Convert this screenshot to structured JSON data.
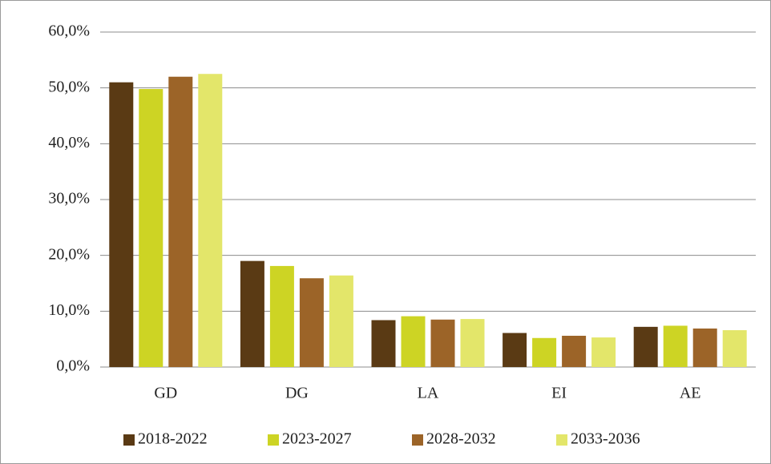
{
  "chart_data": {
    "type": "bar",
    "categories": [
      "GD",
      "DG",
      "LA",
      "EI",
      "AE"
    ],
    "series": [
      {
        "name": "2018-2022",
        "color": "#5a3a14",
        "values": [
          51.0,
          19.0,
          8.4,
          6.1,
          7.2
        ]
      },
      {
        "name": "2023-2027",
        "color": "#cdd424",
        "values": [
          49.8,
          18.1,
          9.1,
          5.2,
          7.4
        ]
      },
      {
        "name": "2028-2032",
        "color": "#9c6428",
        "values": [
          52.0,
          15.9,
          8.5,
          5.6,
          6.9
        ]
      },
      {
        "name": "2033-2036",
        "color": "#e3e66a",
        "values": [
          52.5,
          16.4,
          8.6,
          5.3,
          6.6
        ]
      }
    ],
    "ylim": [
      0,
      60
    ],
    "yticks": [
      {
        "value": 0,
        "label": "0,0%"
      },
      {
        "value": 10,
        "label": "10,0%"
      },
      {
        "value": 20,
        "label": "20,0%"
      },
      {
        "value": 30,
        "label": "30,0%"
      },
      {
        "value": 40,
        "label": "40,0%"
      },
      {
        "value": 50,
        "label": "50,0%"
      },
      {
        "value": 60,
        "label": "60,0%"
      }
    ],
    "grid": true,
    "legend": "bottom"
  }
}
